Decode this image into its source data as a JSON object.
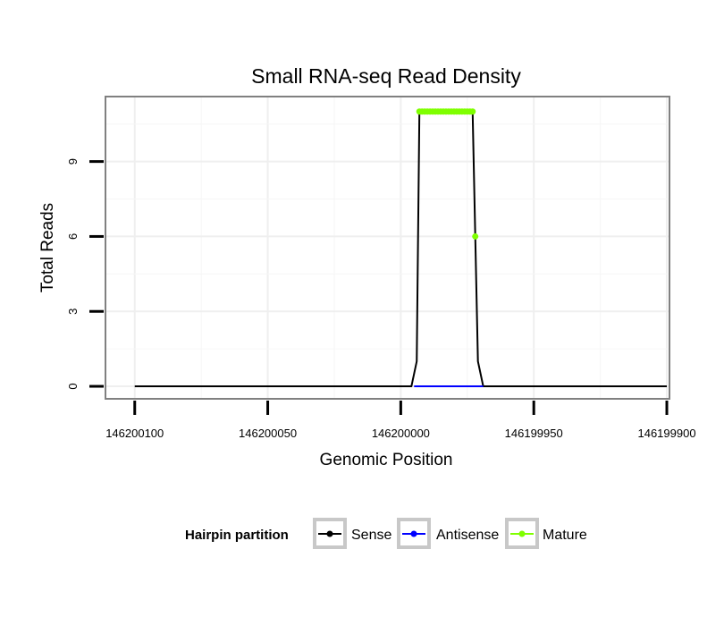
{
  "chart_data": {
    "type": "line",
    "title": "Small RNA-seq Read Density",
    "xlabel": "Genomic Position",
    "ylabel": "Total Reads",
    "x_reversed": true,
    "xlim": [
      146200111,
      146199899
    ],
    "ylim": [
      -0.5,
      11.6
    ],
    "xticks": [
      146200100,
      146200050,
      146200000,
      146199950,
      146199900
    ],
    "xtick_labels": [
      "146200100",
      "146200050",
      "146200000",
      "146199950",
      "146199900"
    ],
    "yticks": [
      0,
      3,
      6,
      9
    ],
    "ytick_labels": [
      "0",
      "3",
      "6",
      "9"
    ],
    "grid": true,
    "legend": {
      "title": "Hairpin partition",
      "placement": "bottom",
      "entries": [
        {
          "name": "Sense",
          "color": "#000000"
        },
        {
          "name": "Antisense",
          "color": "#0000ff"
        },
        {
          "name": "Mature",
          "color": "#7fff00"
        }
      ]
    },
    "series": [
      {
        "name": "Sense",
        "color": "#000000",
        "points": [
          [
            146200100,
            0
          ],
          [
            146199996,
            0
          ],
          [
            146199994,
            1
          ],
          [
            146199993,
            11
          ],
          [
            146199986,
            11
          ],
          [
            146199979,
            11
          ],
          [
            146199973,
            11
          ],
          [
            146199972,
            6
          ],
          [
            146199971,
            1
          ],
          [
            146199969,
            0
          ],
          [
            146199900,
            0
          ]
        ]
      },
      {
        "name": "Antisense",
        "color": "#0000ff",
        "points": [
          [
            146199995,
            0
          ],
          [
            146199969,
            0
          ]
        ]
      },
      {
        "name": "Mature",
        "color": "#7fff00",
        "points": [
          [
            146199993,
            11
          ],
          [
            146199992,
            11
          ],
          [
            146199991,
            11
          ],
          [
            146199990,
            11
          ],
          [
            146199989,
            11
          ],
          [
            146199988,
            11
          ],
          [
            146199987,
            11
          ],
          [
            146199986,
            11
          ],
          [
            146199985,
            11
          ],
          [
            146199984,
            11
          ],
          [
            146199983,
            11
          ],
          [
            146199982,
            11
          ],
          [
            146199981,
            11
          ],
          [
            146199980,
            11
          ],
          [
            146199979,
            11
          ],
          [
            146199978,
            11
          ],
          [
            146199977,
            11
          ],
          [
            146199976,
            11
          ],
          [
            146199975,
            11
          ],
          [
            146199974,
            11
          ],
          [
            146199973,
            11
          ],
          [
            146199972,
            6
          ]
        ]
      }
    ]
  }
}
